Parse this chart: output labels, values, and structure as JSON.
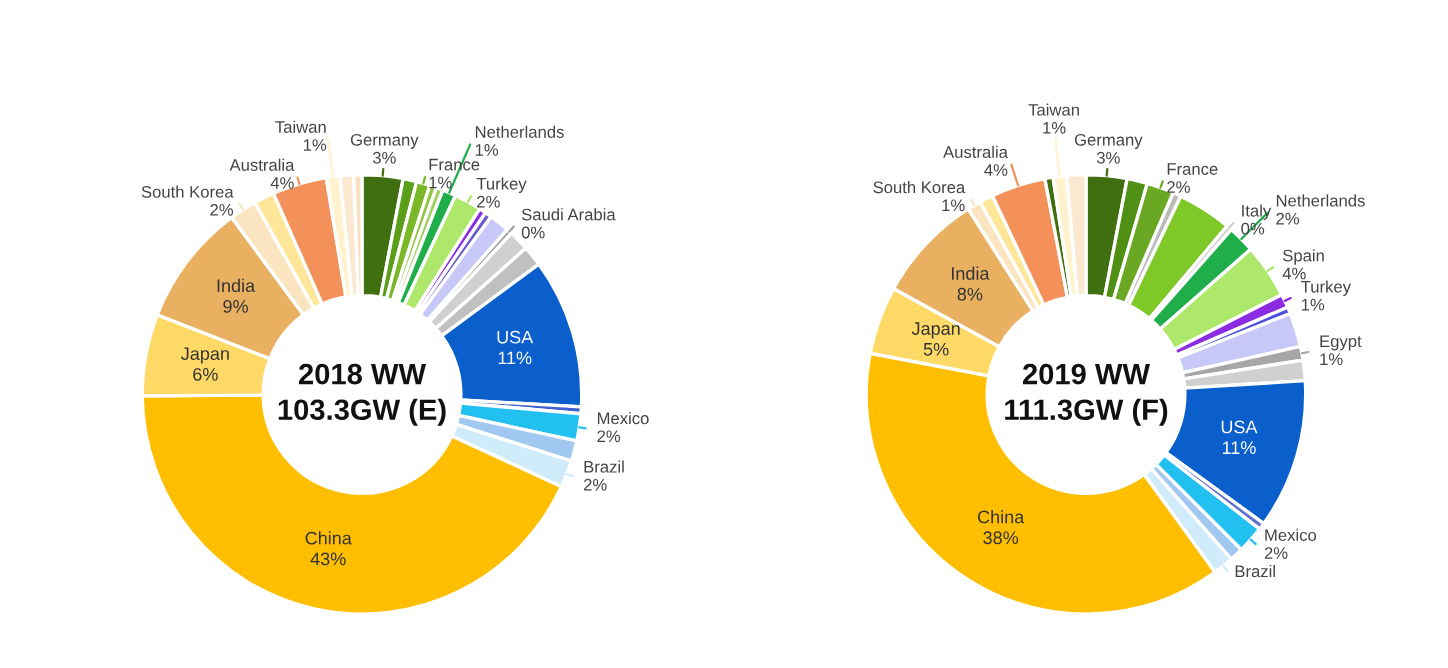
{
  "chart_data": [
    {
      "type": "donut",
      "title": "2018 WW\n103.3GW (E)",
      "categories": [
        "Germany",
        null,
        "France",
        null,
        null,
        "Netherlands",
        "Turkey",
        null,
        null,
        null,
        "Saudi Arabia",
        null,
        null,
        "USA",
        null,
        "Mexico",
        null,
        "Brazil",
        "China",
        "Japan",
        "India",
        "South Korea",
        null,
        "Australia",
        "Taiwan",
        null,
        null
      ],
      "values": [
        3,
        1,
        1,
        0.5,
        0.5,
        1,
        2,
        0.5,
        0.5,
        1.5,
        0.4,
        1.5,
        1.5,
        11,
        0.5,
        2,
        1.5,
        2,
        43,
        6,
        9,
        2,
        1.5,
        4,
        1,
        1,
        0.6
      ],
      "value_labels": [
        "3%",
        null,
        "1%",
        null,
        null,
        "1%",
        "2%",
        null,
        null,
        null,
        "0%",
        null,
        null,
        "11%",
        null,
        "2%",
        null,
        "2%",
        "43%",
        "6%",
        "9%",
        "2%",
        null,
        "4%",
        "1%",
        null,
        null
      ],
      "colors": [
        "#3f6f0f",
        "#5a9e1a",
        "#7ab828",
        "#8cc63f",
        "#a0d060",
        "#1fae4a",
        "#aee86a",
        "#8b2be2",
        "#6a5acd",
        "#c8c8f8",
        "#a0a0a0",
        "#d0d0d0",
        "#c0c0c0",
        "#0a5fcc",
        "#4060d0",
        "#22c0f0",
        "#a0c8f0",
        "#d0ecfa",
        "#ffbf00",
        "#ffd966",
        "#e8b060",
        "#fbe5c0",
        "#ffe699",
        "#f4905a",
        "#fff2cc",
        "#fce8d0",
        "#f8e0c0"
      ]
    },
    {
      "type": "donut",
      "title": "2019 WW\n111.3GW (F)",
      "categories": [
        "Germany",
        null,
        "France",
        null,
        null,
        "Italy",
        "Netherlands",
        "Spain",
        "Turkey",
        null,
        null,
        "Egypt",
        null,
        "USA",
        null,
        "Mexico",
        null,
        "Brazil",
        "China",
        "Japan",
        "India",
        "South Korea",
        null,
        "Australia",
        null,
        "Taiwan",
        null
      ],
      "values": [
        3,
        1.5,
        2,
        0.6,
        4,
        0.4,
        2,
        4,
        1,
        0.5,
        2.5,
        1,
        1.5,
        11,
        0.5,
        2,
        1,
        1.5,
        38,
        5,
        8,
        1,
        1,
        4,
        0.6,
        1,
        1.4
      ],
      "value_labels": [
        "3%",
        null,
        "2%",
        null,
        null,
        "0%",
        "2%",
        "4%",
        "1%",
        null,
        null,
        "1%",
        null,
        "11%",
        null,
        "2%",
        null,
        null,
        "38%",
        "5%",
        "8%",
        "1%",
        null,
        "4%",
        null,
        "1%",
        null
      ],
      "colors": [
        "#3f6f0f",
        "#4f8f14",
        "#6aa824",
        "#bbbbbb",
        "#7ec828",
        "#d0d0d0",
        "#1fae4a",
        "#aee86a",
        "#8b2be2",
        "#5050e0",
        "#c8c8f8",
        "#a6a6a6",
        "#d0d0d0",
        "#0a5fcc",
        "#6070d0",
        "#22c0f0",
        "#a0c8f0",
        "#d0ecfa",
        "#ffbf00",
        "#ffd966",
        "#e8b060",
        "#fbe5c0",
        "#ffe699",
        "#f4905a",
        "#3f6f0f",
        "#fff2cc",
        "#fce8d0"
      ]
    }
  ]
}
